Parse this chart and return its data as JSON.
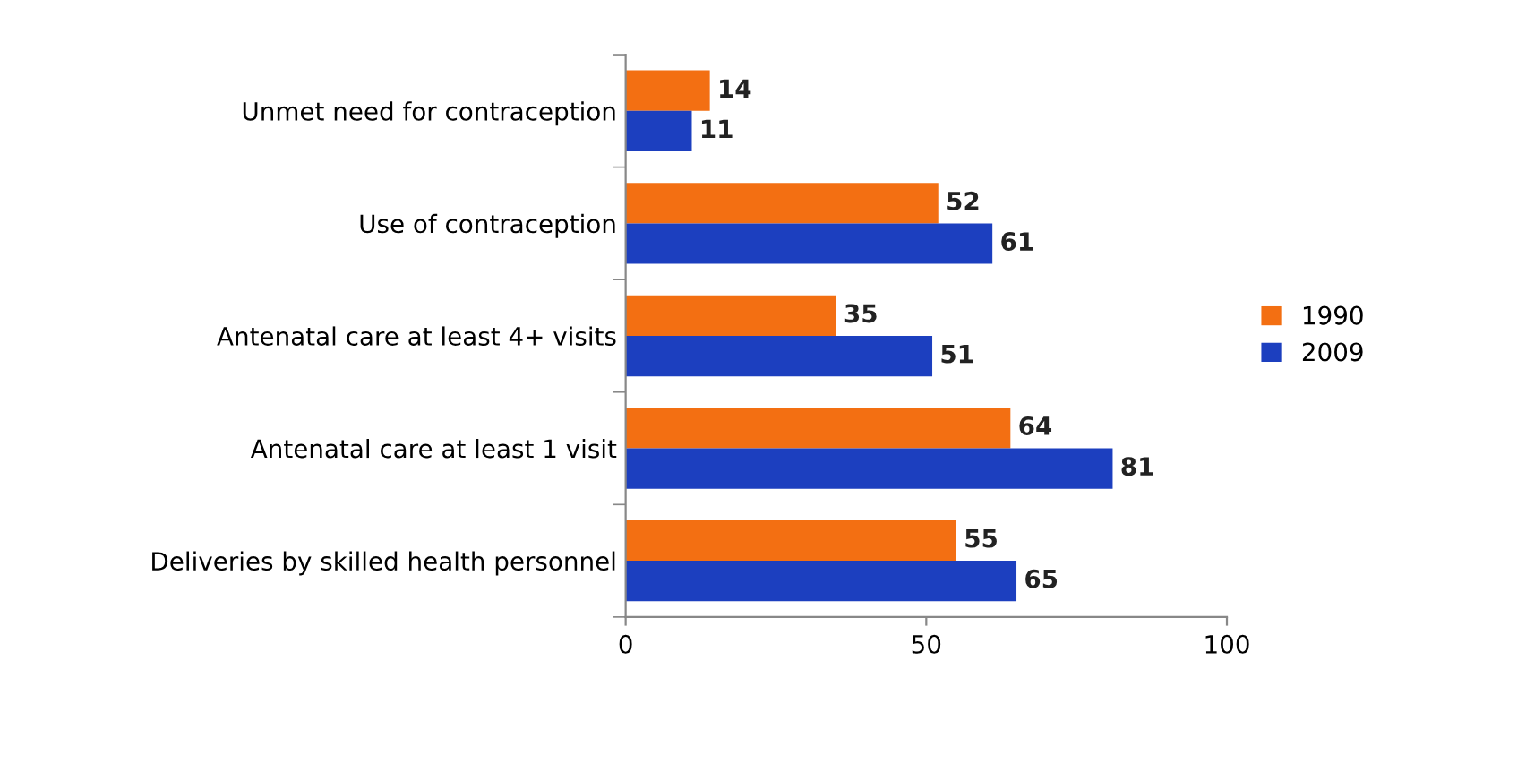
{
  "chart_data": {
    "type": "bar",
    "orientation": "horizontal",
    "categories": [
      "Unmet need for contraception",
      "Use of contraception",
      "Antenatal care at least 4+ visits",
      "Antenatal care at least 1 visit",
      "Deliveries by skilled health personnel"
    ],
    "series": [
      {
        "name": "1990",
        "color": "#f36f12",
        "values": [
          14,
          52,
          35,
          64,
          55
        ]
      },
      {
        "name": "2009",
        "color": "#1c3fbf",
        "values": [
          11,
          61,
          51,
          81,
          65
        ]
      }
    ],
    "xlim": [
      0,
      100
    ],
    "xticks": [
      0,
      50,
      100
    ],
    "data_labels": true,
    "grid": false,
    "legend": "right"
  }
}
